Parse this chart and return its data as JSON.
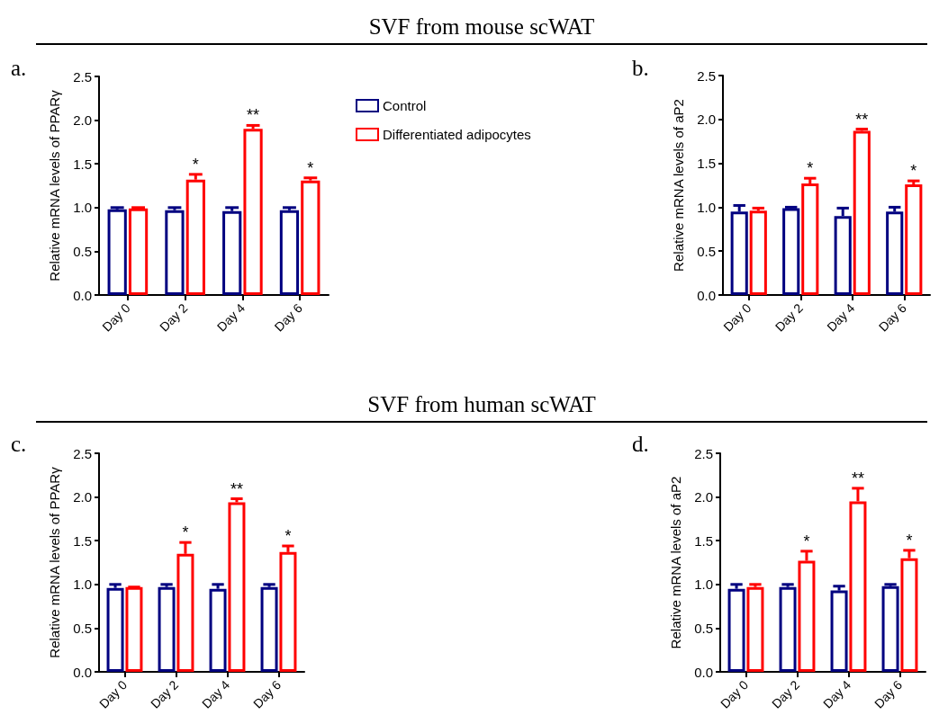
{
  "chart_data": [
    {
      "type": "other",
      "title": "SVF from mouse scWAT"
    },
    {
      "type": "bar",
      "subtitle": "a.",
      "ylabel": "Relative mRNA levels of PPARγ",
      "categories": [
        "Day 0",
        "Day 2",
        "Day 4",
        "Day 6"
      ],
      "ylim": [
        0,
        2.5
      ],
      "yticks": [
        {
          "value": 0,
          "label": "0.0"
        },
        0.5,
        {
          "value": 1,
          "label": "1.0"
        },
        1.5,
        {
          "value": 2,
          "label": "2.0"
        },
        2.5
      ],
      "legend": "top right",
      "series": [
        {
          "name": "Control",
          "color": "#000080",
          "values": [
            0.98,
            0.97,
            0.96,
            0.97
          ],
          "errors": [
            [
              0.98,
              1.0
            ],
            [
              0.97,
              1.0
            ],
            [
              0.96,
              1.0
            ],
            [
              0.97,
              1.0
            ]
          ]
        },
        {
          "name": "Differentiated adipocytes",
          "color": "#ff0000",
          "values": [
            0.99,
            1.32,
            1.9,
            1.31
          ],
          "errors": [
            [
              0.99,
              1.0
            ],
            [
              1.32,
              1.38
            ],
            [
              1.9,
              1.94
            ],
            [
              1.31,
              1.34
            ]
          ]
        }
      ],
      "annotations": [
        {
          "text": "*",
          "x": "Day 2",
          "y": 1.32
        },
        {
          "text": "**",
          "x": "Day 4",
          "y": 1.9
        },
        {
          "text": "*",
          "x": "Day 6",
          "y": 1.31
        }
      ]
    },
    {
      "type": "bar",
      "subtitle": "b.",
      "ylabel": "Relative mRNA levels of aP2",
      "categories": [
        "Day 0",
        "Day 2",
        "Day 4",
        "Day 6"
      ],
      "ylim": [
        0,
        2.5
      ],
      "yticks": [
        {
          "value": 0,
          "label": "0.0"
        },
        0.5,
        {
          "value": 1,
          "label": "1.0"
        },
        1.5,
        {
          "value": 2,
          "label": "2.0"
        },
        2.5
      ],
      "series": [
        {
          "color": "#000080",
          "values": [
            0.95,
            0.99,
            0.9,
            0.95
          ],
          "errors": [
            [
              0.95,
              1.02
            ],
            [
              0.99,
              1.0
            ],
            [
              0.9,
              0.99
            ],
            [
              0.95,
              1.0
            ]
          ]
        },
        {
          "color": "#ff0000",
          "values": [
            0.96,
            1.27,
            1.87,
            1.26
          ],
          "errors": [
            [
              0.96,
              0.99
            ],
            [
              1.27,
              1.33
            ],
            [
              1.87,
              1.89
            ],
            [
              1.26,
              1.3
            ]
          ]
        }
      ],
      "annotations": [
        {
          "text": "*",
          "x": "Day 2",
          "y": 1.27
        },
        {
          "text": "**",
          "x": "Day 4",
          "y": 1.87
        },
        {
          "text": "*",
          "x": "Day 6",
          "y": 1.26
        }
      ]
    },
    {
      "type": "other",
      "title": "SVF from human scWAT"
    },
    {
      "type": "bar",
      "subtitle": "c.",
      "ylabel": "Relative mRNA levels of PPARγ",
      "categories": [
        "Day 0",
        "Day 2",
        "Day 4",
        "Day 6"
      ],
      "ylim": [
        0,
        2.5
      ],
      "yticks": [
        {
          "value": 0,
          "label": "0.0"
        },
        0.5,
        {
          "value": 1,
          "label": "1.0"
        },
        1.5,
        {
          "value": 2,
          "label": "2.0"
        },
        2.5
      ],
      "series": [
        {
          "color": "#000080",
          "values": [
            0.96,
            0.97,
            0.95,
            0.97
          ],
          "errors": [
            [
              0.96,
              1.0
            ],
            [
              0.97,
              1.0
            ],
            [
              0.95,
              1.0
            ],
            [
              0.97,
              1.0
            ]
          ]
        },
        {
          "color": "#ff0000",
          "values": [
            0.97,
            1.35,
            1.94,
            1.37
          ],
          "errors": [
            [
              0.97,
              0.97
            ],
            [
              1.35,
              1.48
            ],
            [
              1.94,
              1.98
            ],
            [
              1.37,
              1.44
            ]
          ]
        }
      ],
      "annotations": [
        {
          "text": "*",
          "x": "Day 2",
          "y": 1.35
        },
        {
          "text": "**",
          "x": "Day 4",
          "y": 1.94
        },
        {
          "text": "*",
          "x": "Day 6",
          "y": 1.37
        }
      ]
    },
    {
      "type": "bar",
      "subtitle": "d.",
      "ylabel": "Relative mRNA levels of aP2",
      "categories": [
        "Day 0",
        "Day 2",
        "Day 4",
        "Day 6"
      ],
      "ylim": [
        0,
        2.5
      ],
      "yticks": [
        {
          "value": 0,
          "label": "0.0"
        },
        0.5,
        {
          "value": 1,
          "label": "1.0"
        },
        1.5,
        {
          "value": 2,
          "label": "2.0"
        },
        2.5
      ],
      "series": [
        {
          "color": "#000080",
          "values": [
            0.95,
            0.97,
            0.93,
            0.98
          ],
          "errors": [
            [
              0.95,
              1.0
            ],
            [
              0.97,
              1.0
            ],
            [
              0.93,
              0.98
            ],
            [
              0.98,
              1.0
            ]
          ]
        },
        {
          "color": "#ff0000",
          "values": [
            0.97,
            1.27,
            1.95,
            1.3
          ],
          "errors": [
            [
              0.97,
              1.0
            ],
            [
              1.27,
              1.38
            ],
            [
              1.95,
              2.1
            ],
            [
              1.3,
              1.39
            ]
          ]
        }
      ],
      "annotations": [
        {
          "text": "*",
          "x": "Day 2",
          "y": 1.27
        },
        {
          "text": "**",
          "x": "Day 4",
          "y": 1.95
        },
        {
          "text": "*",
          "x": "Day 6",
          "y": 1.3
        }
      ]
    }
  ]
}
